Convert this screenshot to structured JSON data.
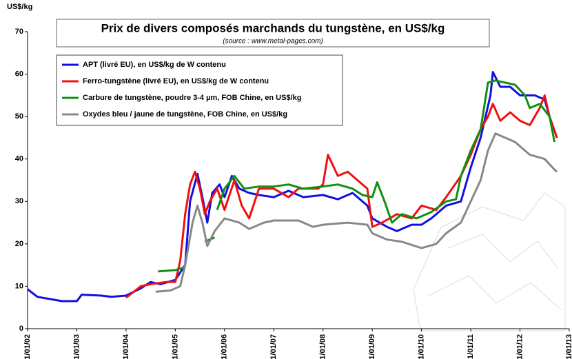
{
  "chart_data": {
    "type": "line",
    "title": "Prix de divers composés marchands du tungstène, en US$/kg",
    "subtitle": "(source : www.metal-pages.com)",
    "y_label": "US$/kg",
    "xlim": [
      2002,
      2013
    ],
    "xticks": [
      {
        "value": 2002,
        "label": "1/01/02"
      },
      {
        "value": 2003,
        "label": "1/01/03"
      },
      {
        "value": 2004,
        "label": "1/01/04"
      },
      {
        "value": 2005,
        "label": "1/01/05"
      },
      {
        "value": 2006,
        "label": "1/01/06"
      },
      {
        "value": 2007,
        "label": "1/01/07"
      },
      {
        "value": 2008,
        "label": "1/01/08"
      },
      {
        "value": 2009,
        "label": "1/01/09"
      },
      {
        "value": 2010,
        "label": "1/01/10"
      },
      {
        "value": 2011,
        "label": "1/01/11"
      },
      {
        "value": 2012,
        "label": "1/01/12"
      },
      {
        "value": 2013,
        "label": "1/01/13"
      }
    ],
    "ylim": [
      0,
      70
    ],
    "yticks": [
      0,
      10,
      20,
      30,
      40,
      50,
      60,
      70
    ],
    "grid": false,
    "legend": "upper left",
    "series": [
      {
        "name": "APT (livré EU), en US$/kg de W contenu",
        "color": "#1010e0",
        "x": [
          2002,
          2002.2,
          2002.7,
          2003.0,
          2003.1,
          2003.5,
          2003.7,
          2004.0,
          2004.3,
          2004.5,
          2004.7,
          2005.0,
          2005.2,
          2005.3,
          2005.45,
          2005.55,
          2005.65,
          2005.75,
          2005.9,
          2006.0,
          2006.15,
          2006.3,
          2006.5,
          2006.7,
          2007.0,
          2007.3,
          2007.6,
          2008.0,
          2008.3,
          2008.6,
          2008.9,
          2009.0,
          2009.3,
          2009.5,
          2009.8,
          2010.0,
          2010.2,
          2010.5,
          2010.8,
          2011.0,
          2011.2,
          2011.4,
          2011.45,
          2011.6,
          2011.8,
          2012.0,
          2012.3,
          2012.5,
          2012.6,
          2012.75
        ],
        "values": [
          9.3,
          7.5,
          6.5,
          6.5,
          8,
          7.8,
          7.5,
          7.8,
          9.5,
          11,
          10.5,
          11.5,
          15,
          30,
          36.5,
          31,
          25,
          32,
          34,
          31,
          36,
          33,
          32,
          31.5,
          31,
          32.5,
          31,
          31.5,
          30.5,
          32,
          29,
          26,
          24,
          23,
          24.5,
          24.5,
          26,
          29,
          30,
          38,
          45,
          55,
          60.5,
          57,
          57,
          55,
          55,
          54,
          50,
          45
        ]
      },
      {
        "name": "Ferro-tungstène (livré EU), en US$/kg de W contenu",
        "color": "#f01010",
        "x": [
          2004.0,
          2004.3,
          2004.5,
          2004.8,
          2005.0,
          2005.1,
          2005.2,
          2005.3,
          2005.4,
          2005.5,
          2005.6,
          2005.7,
          2005.85,
          2006.0,
          2006.2,
          2006.35,
          2006.5,
          2006.7,
          2007.0,
          2007.3,
          2007.5,
          2007.9,
          2008.0,
          2008.1,
          2008.3,
          2008.5,
          2008.7,
          2008.9,
          2009.0,
          2009.2,
          2009.5,
          2009.8,
          2010.0,
          2010.3,
          2010.5,
          2010.8,
          2011.0,
          2011.2,
          2011.35,
          2011.45,
          2011.6,
          2011.8,
          2012.0,
          2012.2,
          2012.4,
          2012.5,
          2012.6,
          2012.75
        ],
        "values": [
          7.3,
          10,
          10.5,
          11,
          11,
          16,
          27,
          34,
          37,
          33,
          27,
          30,
          33,
          28,
          35,
          29,
          26,
          33,
          33,
          31,
          33,
          33,
          34,
          41,
          36,
          37,
          35,
          33,
          24,
          25,
          27,
          26,
          29,
          28,
          31,
          36,
          41,
          47,
          50,
          53,
          49,
          51,
          49,
          48,
          52,
          55,
          50,
          45
        ]
      },
      {
        "name": "Carbure de tungstène, poudre 3-4 µm, FOB Chine, en US$/kg",
        "color": "#109010",
        "x": [
          2004.65,
          2005.0,
          2005.2,
          2005.3,
          2005.45,
          2005.5,
          2005.6,
          2005.8,
          2005.82,
          2005.85,
          2006.0,
          2006.2,
          2006.4,
          2006.7,
          2007.0,
          2007.3,
          2007.6,
          2008.0,
          2008.3,
          2008.6,
          2008.8,
          2009.0,
          2009.1,
          2009.25,
          2009.4,
          2009.6,
          2009.9,
          2010.2,
          2010.5,
          2010.7,
          2010.8,
          2011.0,
          2011.2,
          2011.35,
          2011.5,
          2011.7,
          2011.9,
          2012.1,
          2012.2,
          2012.4,
          2012.6,
          2012.7
        ],
        "values": [
          13.5,
          13.8,
          14.5,
          null,
          14.2,
          null,
          20.5,
          21.5,
          null,
          28,
          33,
          36,
          33,
          33.5,
          33.5,
          34,
          33,
          33.5,
          34,
          33,
          31.5,
          31,
          34.5,
          30,
          25,
          27,
          26,
          27.5,
          30,
          30.5,
          36,
          42,
          47,
          58,
          58.5,
          58,
          57.5,
          55,
          52,
          53,
          50,
          44
        ]
      },
      {
        "name": "Oxydes bleu / jaune de tungstène, FOB Chine, en US$/kg",
        "color": "#888888",
        "x": [
          2004.6,
          2004.9,
          2005.1,
          2005.2,
          2005.35,
          2005.45,
          2005.55,
          2005.65,
          2005.8,
          2006.0,
          2006.3,
          2006.5,
          2006.8,
          2007.0,
          2007.5,
          2007.8,
          2008.0,
          2008.5,
          2008.9,
          2009.0,
          2009.3,
          2009.6,
          2010.0,
          2010.3,
          2010.5,
          2010.8,
          2011.0,
          2011.2,
          2011.35,
          2011.5,
          2011.7,
          2011.9,
          2012.2,
          2012.5,
          2012.7,
          2012.75
        ],
        "values": [
          8.7,
          9,
          10,
          15,
          25,
          29,
          25,
          19.5,
          23,
          26,
          25,
          23.5,
          25,
          25.5,
          25.5,
          24,
          24.5,
          25,
          24.5,
          22.5,
          21,
          20.5,
          19,
          20,
          22.5,
          25,
          30,
          35,
          42,
          46,
          45,
          44,
          41,
          40,
          37.5,
          37
        ]
      }
    ]
  }
}
